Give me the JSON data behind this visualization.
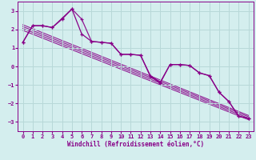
{
  "xlabel": "Windchill (Refroidissement éolien,°C)",
  "bg_color": "#d4eeee",
  "grid_color": "#b8d8d8",
  "line_color": "#880088",
  "xlim": [
    -0.5,
    23.5
  ],
  "ylim": [
    -3.5,
    3.5
  ],
  "yticks": [
    -3,
    -2,
    -1,
    0,
    1,
    2,
    3
  ],
  "xticks": [
    0,
    1,
    2,
    3,
    4,
    5,
    6,
    7,
    8,
    9,
    10,
    11,
    12,
    13,
    14,
    15,
    16,
    17,
    18,
    19,
    20,
    21,
    22,
    23
  ],
  "series1": [
    [
      0,
      1.3
    ],
    [
      1,
      2.2
    ],
    [
      2,
      2.2
    ],
    [
      3,
      2.1
    ],
    [
      4,
      2.6
    ],
    [
      5,
      3.1
    ],
    [
      6,
      1.75
    ],
    [
      7,
      1.35
    ],
    [
      8,
      1.3
    ],
    [
      9,
      1.25
    ],
    [
      10,
      0.65
    ],
    [
      11,
      0.65
    ],
    [
      12,
      0.6
    ],
    [
      13,
      -0.55
    ],
    [
      14,
      -0.9
    ],
    [
      15,
      0.1
    ],
    [
      16,
      0.1
    ],
    [
      17,
      0.05
    ],
    [
      18,
      -0.35
    ],
    [
      19,
      -0.5
    ],
    [
      20,
      -1.4
    ],
    [
      21,
      -1.9
    ],
    [
      22,
      -2.7
    ],
    [
      23,
      -2.8
    ]
  ],
  "series2": [
    [
      0,
      1.3
    ],
    [
      1,
      2.2
    ],
    [
      2,
      2.2
    ],
    [
      3,
      2.1
    ],
    [
      4,
      2.55
    ],
    [
      5,
      3.1
    ],
    [
      6,
      2.55
    ],
    [
      7,
      1.35
    ],
    [
      8,
      1.3
    ],
    [
      9,
      1.25
    ],
    [
      10,
      0.65
    ],
    [
      11,
      0.65
    ],
    [
      12,
      0.6
    ],
    [
      13,
      -0.5
    ],
    [
      14,
      -0.85
    ],
    [
      15,
      0.1
    ],
    [
      16,
      0.1
    ],
    [
      17,
      0.05
    ],
    [
      18,
      -0.35
    ],
    [
      19,
      -0.5
    ],
    [
      20,
      -1.4
    ],
    [
      21,
      -1.9
    ],
    [
      22,
      -2.7
    ],
    [
      23,
      -2.8
    ]
  ],
  "trend_lines": [
    [
      [
        0,
        23
      ],
      [
        2.25,
        -2.65
      ]
    ],
    [
      [
        0,
        23
      ],
      [
        2.15,
        -2.72
      ]
    ],
    [
      [
        0,
        23
      ],
      [
        2.05,
        -2.8
      ]
    ],
    [
      [
        0,
        23
      ],
      [
        1.95,
        -2.88
      ]
    ]
  ]
}
